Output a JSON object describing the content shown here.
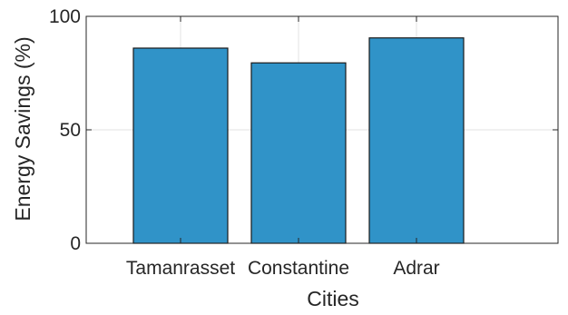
{
  "chart_data": {
    "type": "bar",
    "categories": [
      "Tamanrasset",
      "Constantine",
      "Adrar"
    ],
    "values": [
      86,
      79.5,
      90.5
    ],
    "xlabel": "Cities",
    "ylabel": "Energy Savings (%)",
    "ylim": [
      0,
      100
    ],
    "yticks": [
      0,
      50,
      100
    ],
    "x_positions": [
      1,
      2,
      3
    ],
    "xlim": [
      0.2,
      4.2
    ],
    "bar_width": 0.8,
    "grid": true,
    "bar_color": "#3093c8",
    "bar_edge_color": "#1a1a1a"
  }
}
